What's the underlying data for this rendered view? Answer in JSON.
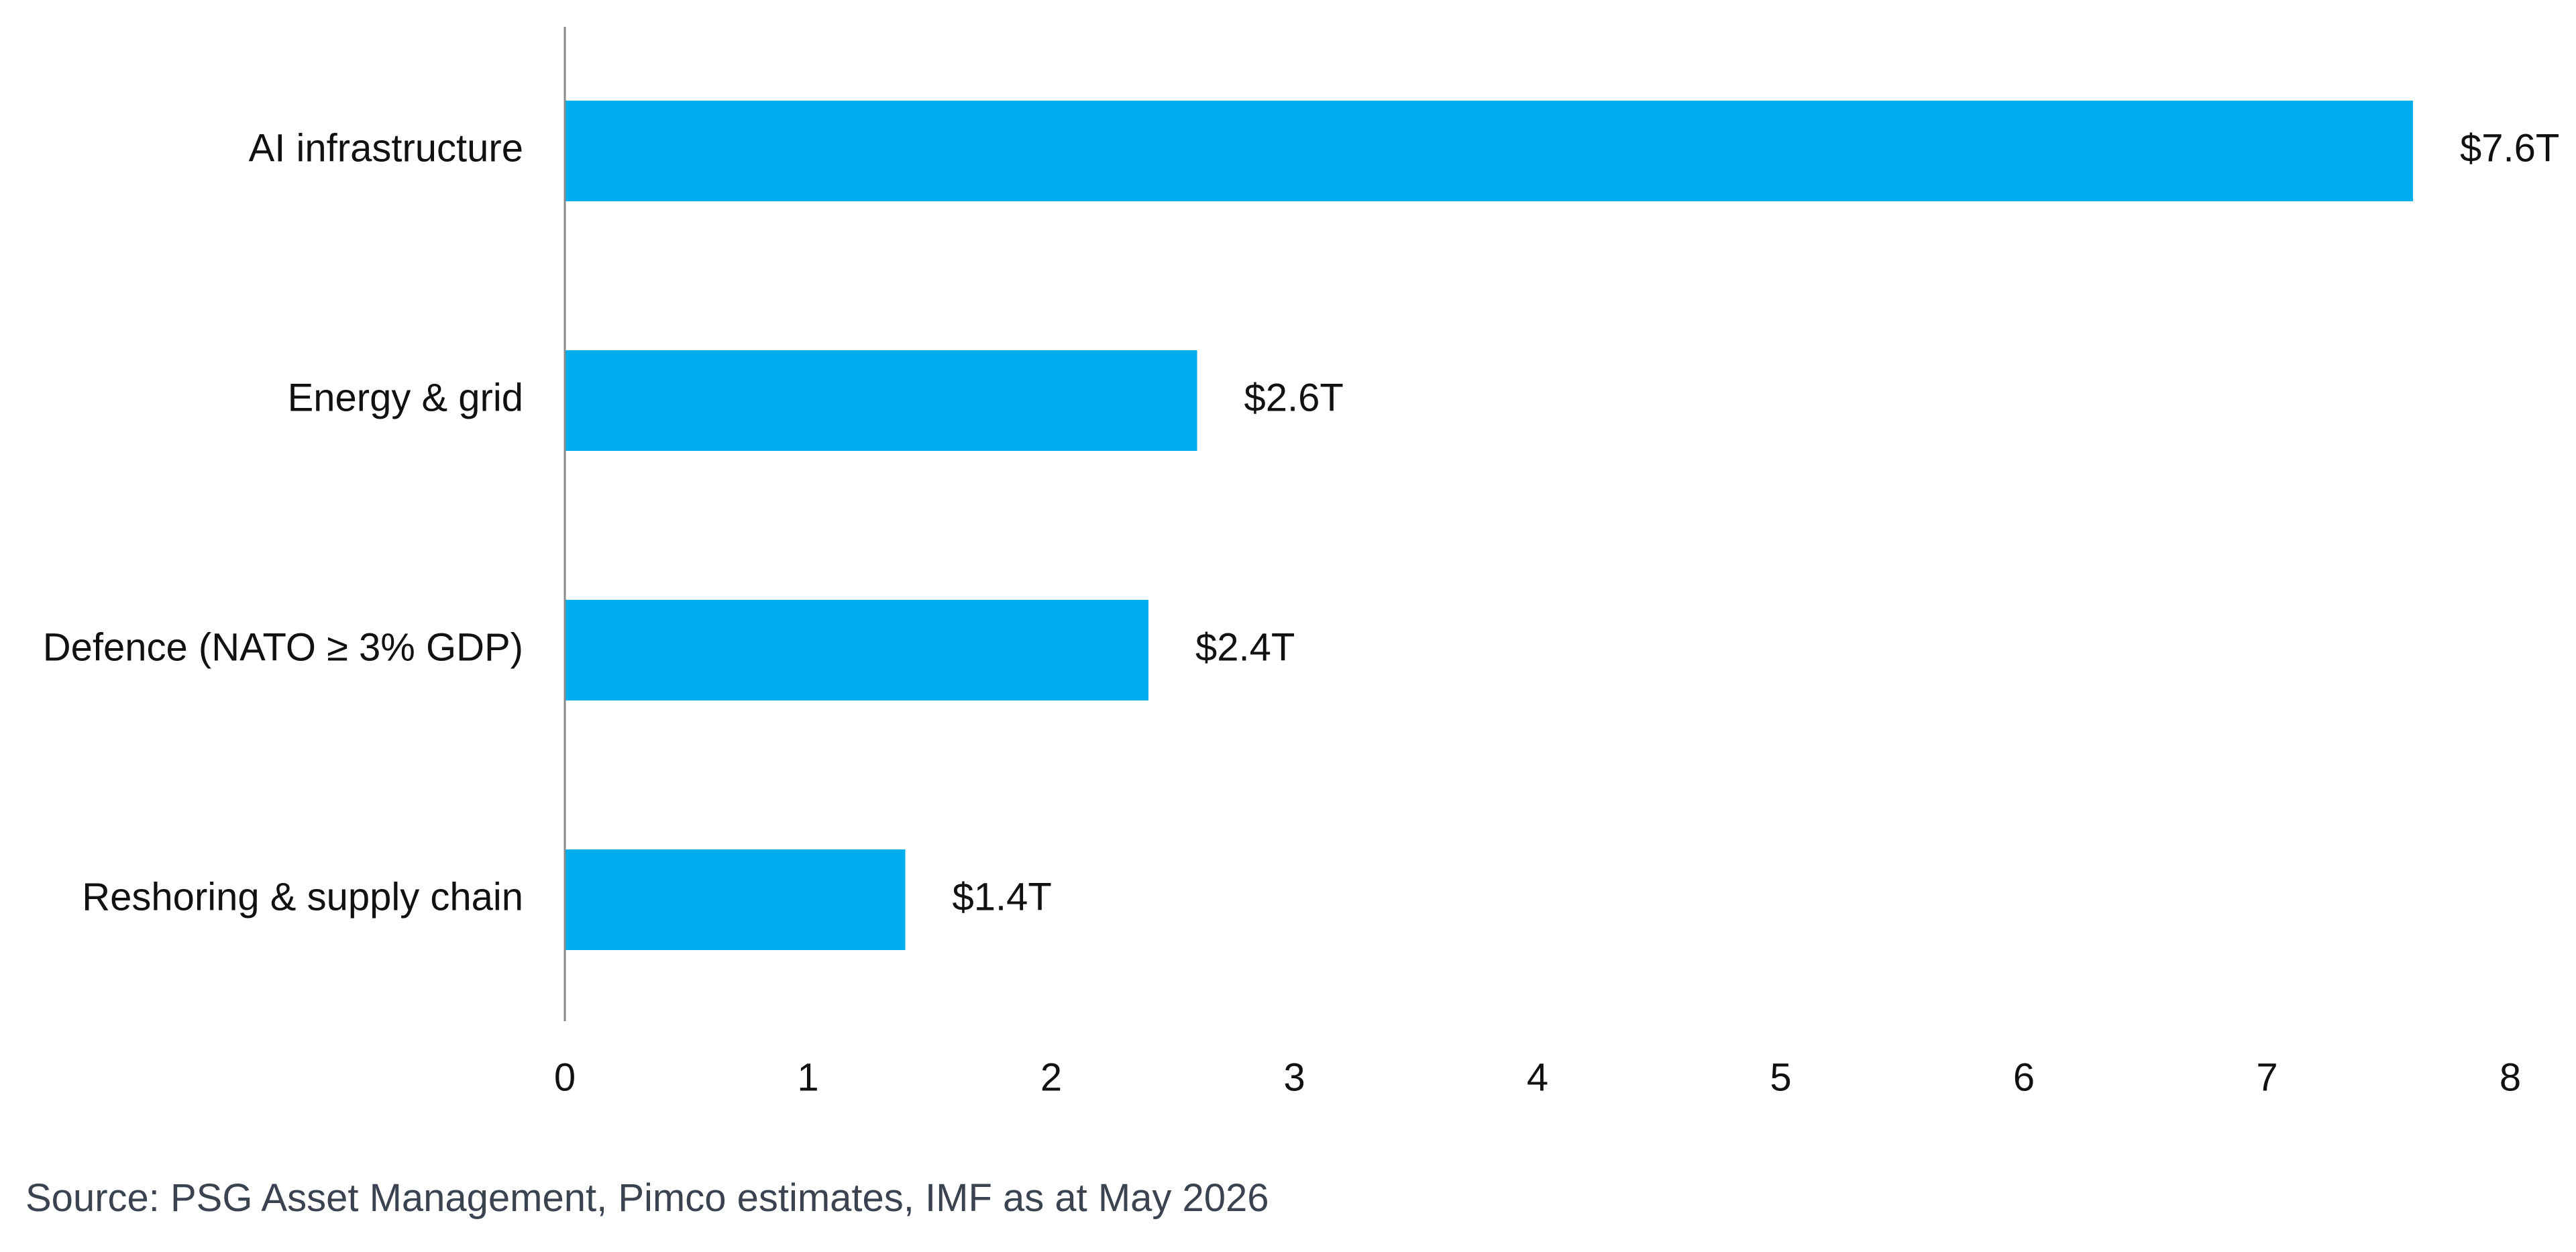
{
  "chart_data": {
    "type": "bar",
    "orientation": "horizontal",
    "title": "",
    "xlabel": "",
    "ylabel": "",
    "categories": [
      "AI infrastructure",
      "Energy & grid",
      "Defence (NATO ≥ 3% GDP)",
      "Reshoring & supply chain"
    ],
    "values": [
      7.6,
      2.6,
      2.4,
      1.4
    ],
    "data_labels": [
      "$7.6T",
      "$2.6T",
      "$2.4T",
      "$1.4T"
    ],
    "xlim": [
      0,
      8
    ],
    "x_ticks": [
      "0",
      "1",
      "2",
      "3",
      "4",
      "5",
      "6",
      "7",
      "8"
    ],
    "grid": false,
    "legend": "none",
    "colors": {
      "bar": "#00aeef",
      "axis": "#888888",
      "text": "#111111"
    }
  },
  "footer": {
    "source": "Source: PSG Asset Management, Pimco estimates, IMF as at May 2026"
  }
}
